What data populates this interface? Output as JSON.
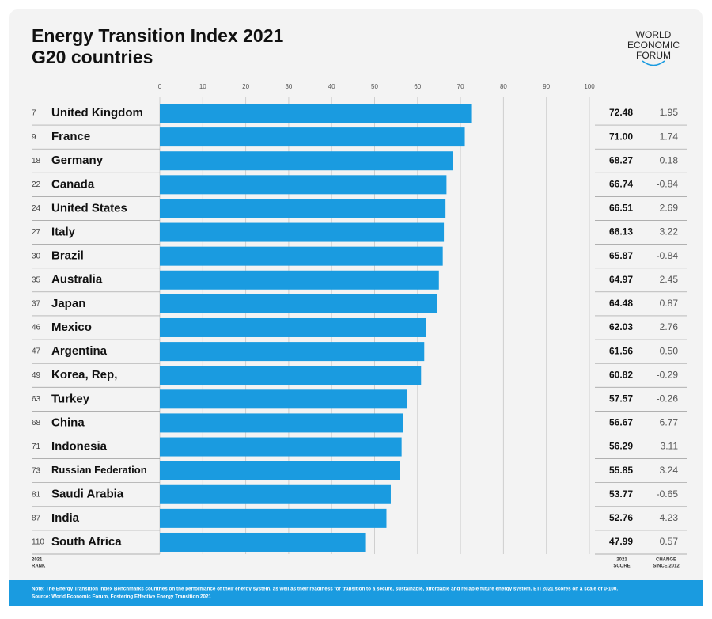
{
  "chart_data": {
    "type": "bar",
    "orientation": "horizontal",
    "title": "Energy Transition Index 2021",
    "subtitle": "G20 countries",
    "logo": [
      "WORLD",
      "ECONOMIC",
      "FORUM"
    ],
    "categories": [
      "United Kingdom",
      "France",
      "Germany",
      "Canada",
      "United States",
      "Italy",
      "Brazil",
      "Australia",
      "Japan",
      "Mexico",
      "Argentina",
      "Korea, Rep,",
      "Turkey",
      "China",
      "Indonesia",
      "Russian Federation",
      "Saudi Arabia",
      "India",
      "South Africa"
    ],
    "ranks": [
      7,
      9,
      18,
      22,
      24,
      27,
      30,
      35,
      37,
      46,
      47,
      49,
      63,
      68,
      71,
      73,
      81,
      87,
      110
    ],
    "values": [
      72.48,
      71,
      68.27,
      66.74,
      66.51,
      66.13,
      65.87,
      64.97,
      64.48,
      62.03,
      61.56,
      60.82,
      57.57,
      56.67,
      56.29,
      55.85,
      53.77,
      52.76,
      47.99
    ],
    "value_labels": [
      "72.48",
      "71.00",
      "68.27",
      "66.74",
      "66.51",
      "66.13",
      "65.87",
      "64.97",
      "64.48",
      "62.03",
      "61.56",
      "60.82",
      "57.57",
      "56.67",
      "56.29",
      "55.85",
      "53.77",
      "52.76",
      "47.99"
    ],
    "changes": [
      "1.95",
      "1.74",
      "0.18",
      "-0.84",
      "2.69",
      "3.22",
      "-0.84",
      "2.45",
      "0.87",
      "2.76",
      "0.50",
      "-0.29",
      "-0.26",
      "6.77",
      "3.11",
      "3.24",
      "-0.65",
      "4.23",
      "0.57"
    ],
    "rank_header": [
      "2021",
      "RANK"
    ],
    "score_header": [
      "2021",
      "SCORE"
    ],
    "change_header": [
      "CHANGE",
      "SINCE 2012"
    ],
    "color": "#1a9be0",
    "xlim": [
      0,
      100
    ],
    "xticks": [
      0,
      10,
      20,
      30,
      40,
      50,
      60,
      70,
      80,
      90,
      100
    ],
    "grid": true,
    "note": "Note: The Energy Transition Index Benchmarks countries on the performance of their energy system, as well as their readiness for transition to a secure, sustainable, affordable and reliable future energy system. ETI 2021 scores on a scale of 0-100.",
    "source": "Source: World Economic Forum, Fostering Effective Energy Transition 2021"
  }
}
